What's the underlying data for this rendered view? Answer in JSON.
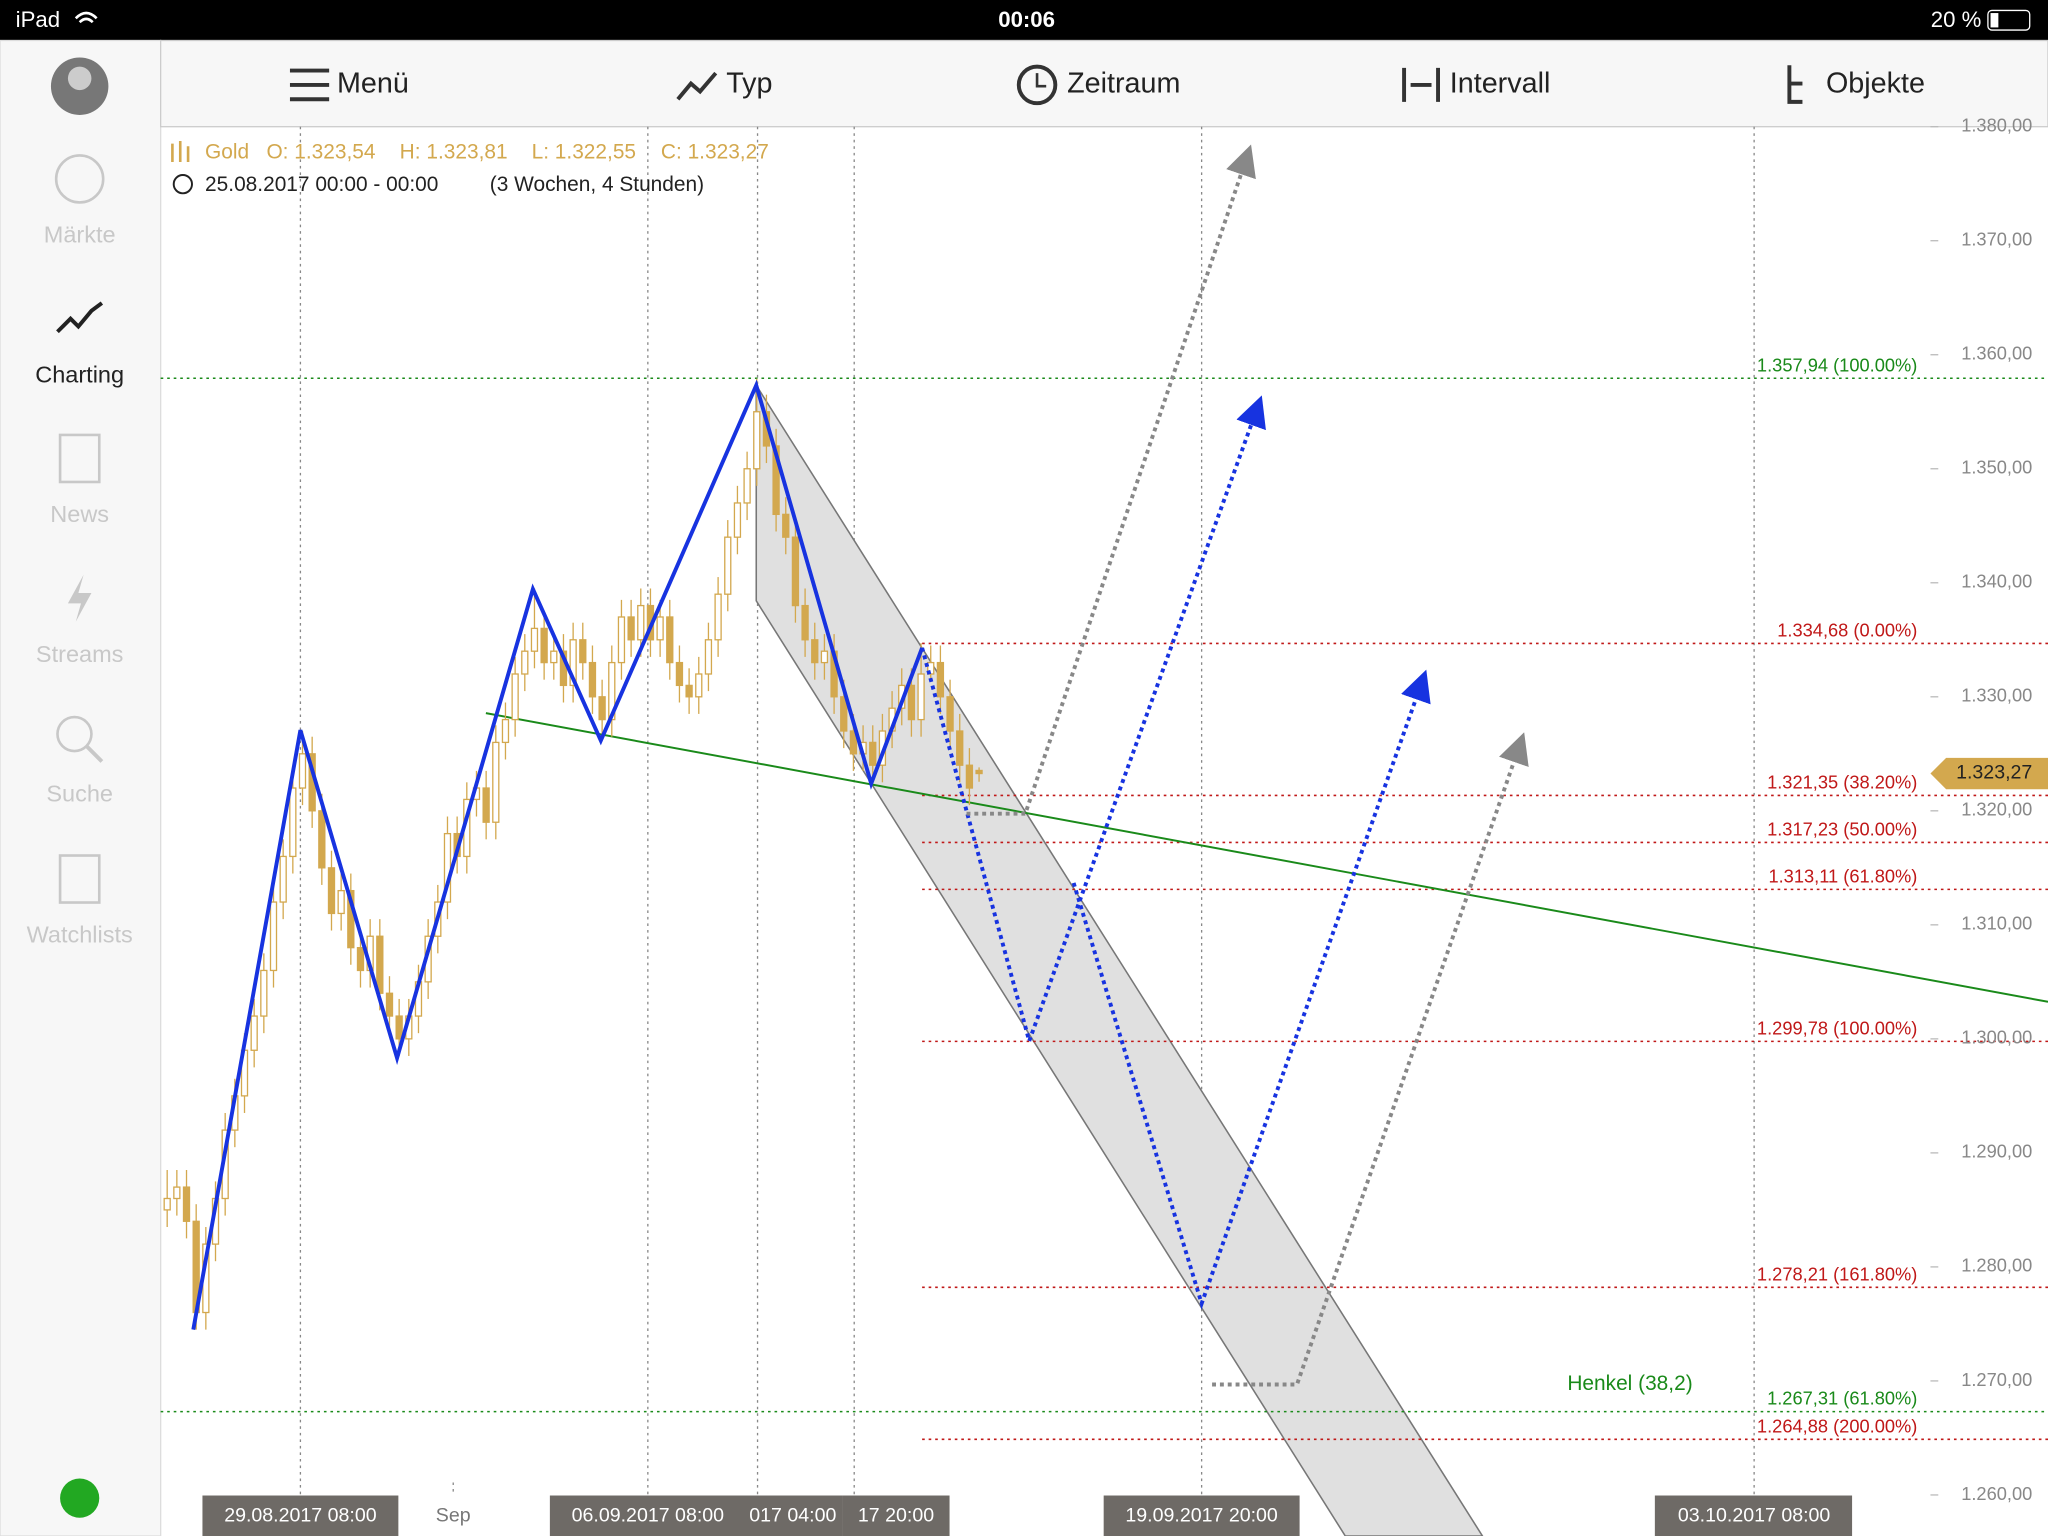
{
  "status_bar": {
    "device": "iPad",
    "time": "00:06",
    "battery": "20 %"
  },
  "sidebar": [
    "Märkte",
    "Charting",
    "News",
    "Streams",
    "Suche",
    "Watchlists"
  ],
  "toolbar": [
    "Menü",
    "Typ",
    "Zeitraum",
    "Intervall",
    "Objekte"
  ],
  "chart_data": {
    "type": "candlestick",
    "instrument": "Gold",
    "ohlc_labels": [
      "O: 1.323,54",
      "H: 1.323,81",
      "L: 1.322,55",
      "C: 1.323,27"
    ],
    "range": "25.08.2017 00:00 - 00:00",
    "range_detail": "(3 Wochen, 4 Stunden)",
    "color": "#d3a84e",
    "ylim": [
      1256.4,
      1380.0
    ],
    "yticks": [
      {
        "value": 1380,
        "label": "1.380,00"
      },
      {
        "value": 1370,
        "label": "1.370,00"
      },
      {
        "value": 1360,
        "label": "1.360,00"
      },
      {
        "value": 1350,
        "label": "1.350,00"
      },
      {
        "value": 1340,
        "label": "1.340,00"
      },
      {
        "value": 1330,
        "label": "1.330,00"
      },
      {
        "value": 1320,
        "label": "1.320,00"
      },
      {
        "value": 1310,
        "label": "1.310,00"
      },
      {
        "value": 1300,
        "label": "1.300,00"
      },
      {
        "value": 1290,
        "label": "1.290,00"
      },
      {
        "value": 1280,
        "label": "1.280,00"
      },
      {
        "value": 1270,
        "label": "1.270,00"
      },
      {
        "value": 1260,
        "label": "1.260,00"
      }
    ],
    "last_price": {
      "value": 1323.27,
      "label": "1.323,27"
    },
    "x_labels": [
      "29.08.2017 08:00",
      "Sep",
      "06.09.2017 08:00",
      "017 04:00",
      "17 20:00",
      "19.09.2017 20:00",
      "03.10.2017 08:00"
    ],
    "levels": [
      {
        "value": 1357.94,
        "label": "1.357,94 (100.00%)",
        "color": "#1a8a1a"
      },
      {
        "value": 1334.68,
        "label": "1.334,68 (0.00%)",
        "color": "#c01818"
      },
      {
        "value": 1321.35,
        "label": "1.321,35 (38.20%)",
        "color": "#c01818"
      },
      {
        "value": 1317.23,
        "label": "1.317,23 (50.00%)",
        "color": "#c01818"
      },
      {
        "value": 1313.11,
        "label": "1.313,11 (61.80%)",
        "color": "#c01818"
      },
      {
        "value": 1299.78,
        "label": "1.299,78 (100.00%)",
        "color": "#c01818"
      },
      {
        "value": 1278.21,
        "label": "1.278,21 (161.80%)",
        "color": "#c01818"
      },
      {
        "value": 1267.31,
        "label": "1.267,31 (61.80%)",
        "color": "#1a8a1a"
      },
      {
        "value": 1264.88,
        "label": "1.264,88 (200.00%)",
        "color": "#c01818"
      }
    ],
    "annotation": "Henkel (38,2)",
    "candles": [
      [
        1285,
        1288.5,
        1283.5,
        1286
      ],
      [
        1286,
        1288.5,
        1284.5,
        1287
      ],
      [
        1287,
        1288.5,
        1282.5,
        1284
      ],
      [
        1284,
        1285.5,
        1274.5,
        1276
      ],
      [
        1276,
        1283.5,
        1274.5,
        1282
      ],
      [
        1282,
        1287.5,
        1280.5,
        1286
      ],
      [
        1286,
        1293.5,
        1284.5,
        1292
      ],
      [
        1292,
        1296.5,
        1290.5,
        1295
      ],
      [
        1295,
        1300.5,
        1293.5,
        1299
      ],
      [
        1299,
        1303.5,
        1297.5,
        1302
      ],
      [
        1302,
        1307.5,
        1300.5,
        1306
      ],
      [
        1306,
        1313.5,
        1304.5,
        1312
      ],
      [
        1312,
        1317.5,
        1310.5,
        1316
      ],
      [
        1316,
        1323.5,
        1314.5,
        1322
      ],
      [
        1322,
        1327,
        1320.5,
        1325
      ],
      [
        1325,
        1326.5,
        1318.5,
        1320
      ],
      [
        1320,
        1321.5,
        1313.5,
        1315
      ],
      [
        1315,
        1316.5,
        1309.5,
        1311
      ],
      [
        1311,
        1314.5,
        1309.5,
        1313
      ],
      [
        1313,
        1314.5,
        1306.5,
        1308
      ],
      [
        1308,
        1309.5,
        1304.5,
        1306
      ],
      [
        1306,
        1310.5,
        1304.5,
        1309
      ],
      [
        1309,
        1310.5,
        1302.5,
        1304
      ],
      [
        1304,
        1305.5,
        1300.5,
        1302
      ],
      [
        1302,
        1303.5,
        1298.5,
        1300
      ],
      [
        1300,
        1303.5,
        1298.5,
        1302
      ],
      [
        1302,
        1306.5,
        1300.5,
        1305
      ],
      [
        1305,
        1310.5,
        1303.5,
        1309
      ],
      [
        1309,
        1313.5,
        1307.5,
        1312
      ],
      [
        1312,
        1319.5,
        1310.5,
        1318
      ],
      [
        1318,
        1319.5,
        1314.5,
        1316
      ],
      [
        1316,
        1322.5,
        1314.5,
        1321
      ],
      [
        1321,
        1323.5,
        1319.5,
        1322
      ],
      [
        1322,
        1323.5,
        1317.5,
        1319
      ],
      [
        1319,
        1327.5,
        1317.5,
        1326
      ],
      [
        1326,
        1329.5,
        1324.5,
        1328
      ],
      [
        1328,
        1333.5,
        1326.5,
        1332
      ],
      [
        1332,
        1335.5,
        1330.5,
        1334
      ],
      [
        1334,
        1339.5,
        1332.5,
        1336
      ],
      [
        1336,
        1337.5,
        1331.5,
        1333
      ],
      [
        1333,
        1335.5,
        1331.5,
        1334
      ],
      [
        1334,
        1335.5,
        1329.5,
        1331
      ],
      [
        1331,
        1336.5,
        1329.5,
        1335
      ],
      [
        1335,
        1336.5,
        1331.5,
        1333
      ],
      [
        1333,
        1334.5,
        1328.5,
        1330
      ],
      [
        1330,
        1331.5,
        1326.5,
        1328
      ],
      [
        1328,
        1334.5,
        1326.5,
        1333
      ],
      [
        1333,
        1338.5,
        1331.5,
        1337
      ],
      [
        1337,
        1338.5,
        1333.5,
        1335
      ],
      [
        1335,
        1339.5,
        1333.5,
        1338
      ],
      [
        1338,
        1339.5,
        1333.5,
        1335
      ],
      [
        1335,
        1338.5,
        1333.5,
        1337
      ],
      [
        1337,
        1338.5,
        1331.5,
        1333
      ],
      [
        1333,
        1334.5,
        1329.5,
        1331
      ],
      [
        1331,
        1332.5,
        1328.5,
        1330
      ],
      [
        1330,
        1333.5,
        1328.5,
        1332
      ],
      [
        1332,
        1336.5,
        1330.5,
        1335
      ],
      [
        1335,
        1340.5,
        1333.5,
        1339
      ],
      [
        1339,
        1345.5,
        1337.5,
        1344
      ],
      [
        1344,
        1348.5,
        1342.5,
        1347
      ],
      [
        1347,
        1351.5,
        1345.5,
        1350
      ],
      [
        1350,
        1357.9,
        1348.5,
        1355
      ],
      [
        1355,
        1356.5,
        1350.5,
        1352
      ],
      [
        1352,
        1353.5,
        1344.5,
        1346
      ],
      [
        1346,
        1347.5,
        1342.5,
        1344
      ],
      [
        1344,
        1345.5,
        1336.5,
        1338
      ],
      [
        1338,
        1339.5,
        1333.5,
        1335
      ],
      [
        1335,
        1336.5,
        1331.5,
        1333
      ],
      [
        1333,
        1335.5,
        1331.5,
        1334
      ],
      [
        1334,
        1335.5,
        1328.5,
        1330
      ],
      [
        1330,
        1331.5,
        1325.5,
        1327
      ],
      [
        1327,
        1328.5,
        1323.5,
        1325
      ],
      [
        1325,
        1327.5,
        1323.5,
        1326
      ],
      [
        1326,
        1327.5,
        1322.5,
        1324
      ],
      [
        1324,
        1328.5,
        1322.5,
        1327
      ],
      [
        1327,
        1330.5,
        1325.5,
        1329
      ],
      [
        1329,
        1332.5,
        1327.5,
        1331
      ],
      [
        1331,
        1332.5,
        1326.5,
        1328
      ],
      [
        1328,
        1334.7,
        1326.5,
        1332
      ],
      [
        1332,
        1334.5,
        1331.5,
        1333
      ],
      [
        1333,
        1334.5,
        1328.5,
        1330
      ],
      [
        1330,
        1331.5,
        1325.5,
        1327
      ],
      [
        1327,
        1328.5,
        1322.5,
        1324
      ],
      [
        1324,
        1325.5,
        1320.5,
        1322
      ],
      [
        1323.54,
        1323.81,
        1322.55,
        1323.27
      ]
    ]
  }
}
